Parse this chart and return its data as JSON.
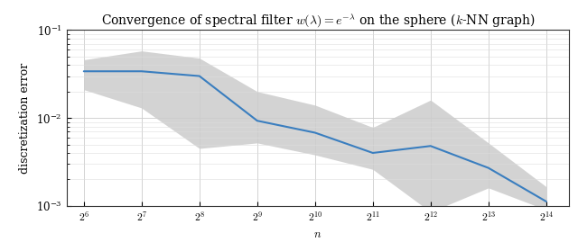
{
  "title": "Convergence of spectral filter $w(\\lambda) = e^{-\\lambda}$ on the sphere ($k$-NN graph)",
  "xlabel": "$n$",
  "ylabel": "discretization error",
  "x_powers": [
    6,
    7,
    8,
    9,
    10,
    11,
    12,
    13,
    14
  ],
  "mean_values": [
    0.034,
    0.034,
    0.03,
    0.0093,
    0.0068,
    0.004,
    0.0048,
    0.0027,
    0.00112
  ],
  "lower_values": [
    0.021,
    0.013,
    0.0045,
    0.0052,
    0.0038,
    0.0026,
    0.00085,
    0.0016,
    0.0009
  ],
  "upper_values": [
    0.046,
    0.058,
    0.048,
    0.02,
    0.014,
    0.0078,
    0.016,
    0.0052,
    0.00165
  ],
  "ylim_low": 0.001,
  "ylim_high": 0.1,
  "line_color": "#3a7ebf",
  "fill_color": "#b0b0b0",
  "fill_alpha": 0.55,
  "background_color": "#ffffff",
  "grid_color": "#cccccc",
  "grid_color_minor": "#dddddd",
  "title_fontsize": 10,
  "label_fontsize": 9,
  "tick_fontsize": 8.5
}
